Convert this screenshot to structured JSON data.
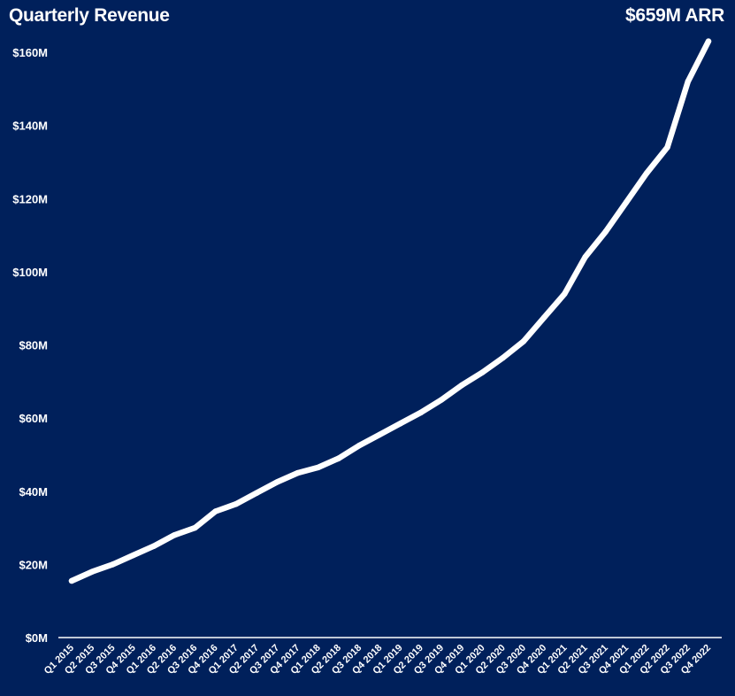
{
  "header": {
    "title": "Quarterly Revenue",
    "subtitle": "$659M ARR"
  },
  "colors": {
    "background": "#00205b",
    "line": "#ffffff",
    "axis": "#ffffff",
    "text": "#ffffff"
  },
  "chart_data": {
    "type": "line",
    "title": "Quarterly Revenue",
    "annotation": "$659M ARR",
    "xlabel": "",
    "ylabel": "",
    "grid": false,
    "ylim": [
      0,
      160
    ],
    "yticks": [
      0,
      20,
      40,
      60,
      80,
      100,
      120,
      140,
      160
    ],
    "ytick_labels": [
      "$0M",
      "$20M",
      "$40M",
      "$60M",
      "$80M",
      "$100M",
      "$120M",
      "$140M",
      "$160M"
    ],
    "categories": [
      "Q1 2015",
      "Q2 2015",
      "Q3 2015",
      "Q4 2015",
      "Q1 2016",
      "Q2 2016",
      "Q3 2016",
      "Q4 2016",
      "Q1 2017",
      "Q2 2017",
      "Q3 2017",
      "Q4 2017",
      "Q1 2018",
      "Q2 2018",
      "Q3 2018",
      "Q4 2018",
      "Q1 2019",
      "Q2 2019",
      "Q3 2019",
      "Q4 2019",
      "Q1 2020",
      "Q2 2020",
      "Q3 2020",
      "Q4 2020",
      "Q1 2021",
      "Q2 2021",
      "Q3 2021",
      "Q4 2021",
      "Q1 2022",
      "Q2 2022",
      "Q3 2022",
      "Q4 2022"
    ],
    "series": [
      {
        "name": "Quarterly Revenue ($M)",
        "values": [
          15.5,
          18,
          20,
          22.5,
          25,
          28,
          30,
          34.5,
          36.5,
          39.5,
          42.5,
          45,
          46.5,
          49,
          52.5,
          55.5,
          58.5,
          61.5,
          65,
          69,
          72.5,
          76.5,
          81,
          87.5,
          94,
          104,
          111,
          119,
          127,
          134,
          152,
          163
        ]
      }
    ]
  }
}
